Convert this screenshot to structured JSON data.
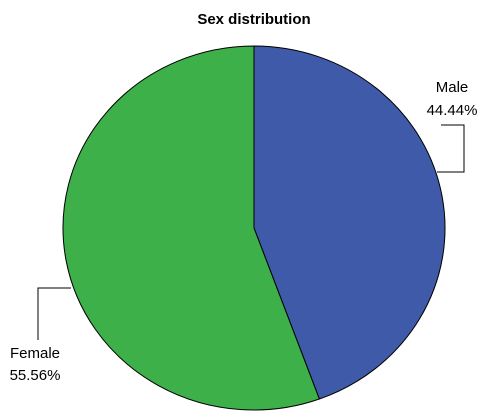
{
  "chart_data": {
    "type": "pie",
    "title": "Sex distribution",
    "start_angle": "top (12 o'clock)",
    "direction": "clockwise",
    "slices": [
      {
        "name": "Male",
        "percent_label": "44.44%",
        "value": 44.44,
        "color": "#3F5AA8"
      },
      {
        "name": "Female",
        "percent_label": "55.56%",
        "value": 55.56,
        "color": "#3DB04A"
      }
    ]
  }
}
